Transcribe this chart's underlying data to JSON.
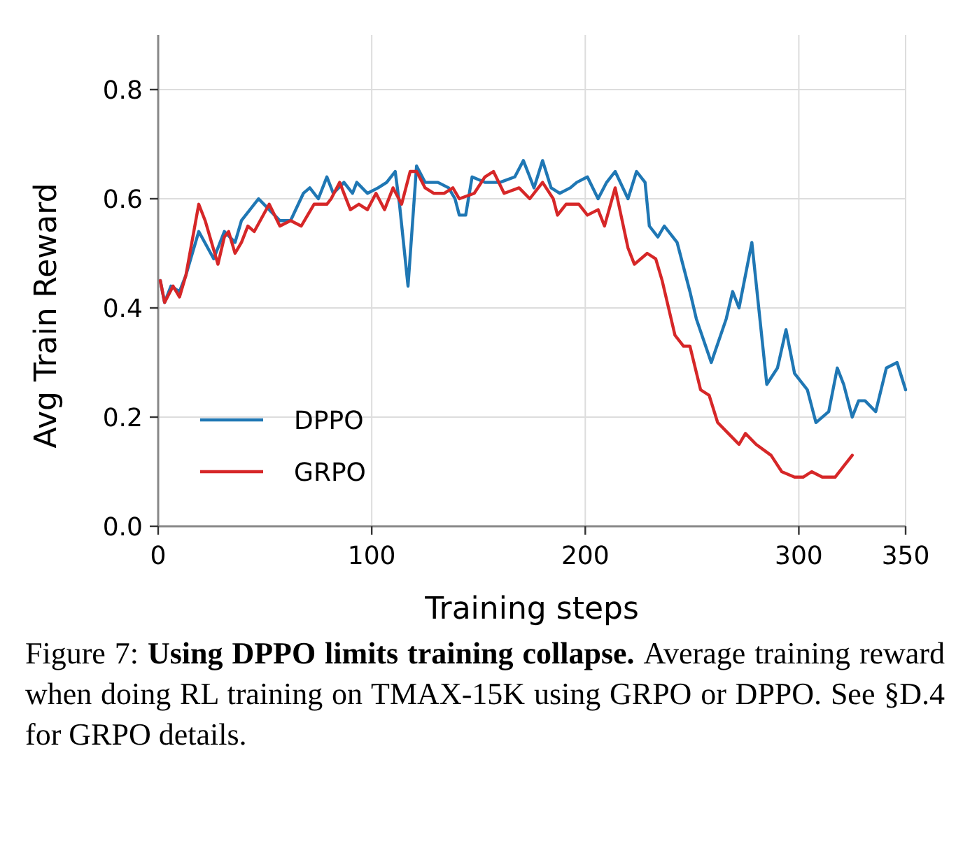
{
  "chart_data": {
    "type": "line",
    "xlabel": "Training steps",
    "ylabel": "Avg Train Reward",
    "xlim": [
      0,
      350
    ],
    "xticks": [
      0,
      100,
      200,
      300,
      350
    ],
    "ylim": [
      0,
      0.9
    ],
    "yticks": [
      {
        "value": 0,
        "label": "0.0"
      },
      {
        "value": 0.2,
        "label": "0.2"
      },
      {
        "value": 0.4,
        "label": "0.4"
      },
      {
        "value": 0.6,
        "label": "0.6"
      },
      {
        "value": 0.8,
        "label": "0.8"
      }
    ],
    "grid": true,
    "legend": "bottom left",
    "series": [
      {
        "name": "DPPO",
        "color": "#1f77b4",
        "x": [
          1,
          3,
          6,
          10,
          13,
          19,
          26,
          31,
          36,
          39,
          47,
          52,
          57,
          62,
          68,
          71,
          75,
          79,
          82,
          87,
          91,
          93,
          98,
          103,
          107,
          111,
          113,
          117,
          121,
          125,
          131,
          136,
          139,
          141,
          144,
          147,
          153,
          160,
          167,
          171,
          174,
          176,
          180,
          184,
          188,
          193,
          196,
          201,
          206,
          210,
          214,
          220,
          224,
          228,
          230,
          234,
          237,
          243,
          249,
          252,
          259,
          266,
          269,
          272,
          278,
          285,
          290,
          294,
          298,
          304,
          308,
          314,
          318,
          321,
          325,
          328,
          331,
          336,
          341,
          346,
          350
        ],
        "values": [
          0.45,
          0.41,
          0.44,
          0.43,
          0.46,
          0.54,
          0.49,
          0.54,
          0.52,
          0.56,
          0.6,
          0.58,
          0.56,
          0.56,
          0.61,
          0.62,
          0.6,
          0.64,
          0.61,
          0.63,
          0.61,
          0.63,
          0.61,
          0.62,
          0.63,
          0.65,
          0.59,
          0.44,
          0.66,
          0.63,
          0.63,
          0.62,
          0.6,
          0.57,
          0.57,
          0.64,
          0.63,
          0.63,
          0.64,
          0.67,
          0.64,
          0.62,
          0.67,
          0.62,
          0.61,
          0.62,
          0.63,
          0.64,
          0.6,
          0.63,
          0.65,
          0.6,
          0.65,
          0.63,
          0.55,
          0.53,
          0.55,
          0.52,
          0.43,
          0.38,
          0.3,
          0.38,
          0.43,
          0.4,
          0.52,
          0.26,
          0.29,
          0.36,
          0.28,
          0.25,
          0.19,
          0.21,
          0.29,
          0.26,
          0.2,
          0.23,
          0.23,
          0.21,
          0.29,
          0.3,
          0.25
        ]
      },
      {
        "name": "GRPO",
        "color": "#d62728",
        "x": [
          1,
          3,
          7,
          10,
          13,
          19,
          22,
          28,
          31,
          33,
          36,
          39,
          42,
          45,
          52,
          57,
          62,
          67,
          70,
          73,
          79,
          81,
          85,
          90,
          94,
          98,
          102,
          106,
          110,
          114,
          118,
          121,
          125,
          129,
          134,
          138,
          141,
          148,
          153,
          157,
          162,
          169,
          174,
          180,
          185,
          187,
          191,
          197,
          201,
          206,
          209,
          214,
          220,
          223,
          229,
          233,
          236,
          242,
          246,
          249,
          254,
          258,
          262,
          267,
          272,
          275,
          280,
          287,
          292,
          298,
          302,
          306,
          311,
          317,
          321,
          325
        ],
        "values": [
          0.45,
          0.41,
          0.44,
          0.42,
          0.46,
          0.59,
          0.56,
          0.48,
          0.53,
          0.54,
          0.5,
          0.52,
          0.55,
          0.54,
          0.59,
          0.55,
          0.56,
          0.55,
          0.57,
          0.59,
          0.59,
          0.6,
          0.63,
          0.58,
          0.59,
          0.58,
          0.61,
          0.58,
          0.62,
          0.59,
          0.65,
          0.65,
          0.62,
          0.61,
          0.61,
          0.62,
          0.6,
          0.61,
          0.64,
          0.65,
          0.61,
          0.62,
          0.6,
          0.63,
          0.6,
          0.57,
          0.59,
          0.59,
          0.57,
          0.58,
          0.55,
          0.62,
          0.51,
          0.48,
          0.5,
          0.49,
          0.45,
          0.35,
          0.33,
          0.33,
          0.25,
          0.24,
          0.19,
          0.17,
          0.15,
          0.17,
          0.15,
          0.13,
          0.1,
          0.09,
          0.09,
          0.1,
          0.09,
          0.09,
          0.11,
          0.13
        ]
      }
    ],
    "annotations": [
      "Figure 7:",
      "Using DPPO limits training collapse.",
      "Average training reward when doing RL training on TMAX-15K using GRPO or DPPO. See §D.4 for GRPO details."
    ]
  }
}
